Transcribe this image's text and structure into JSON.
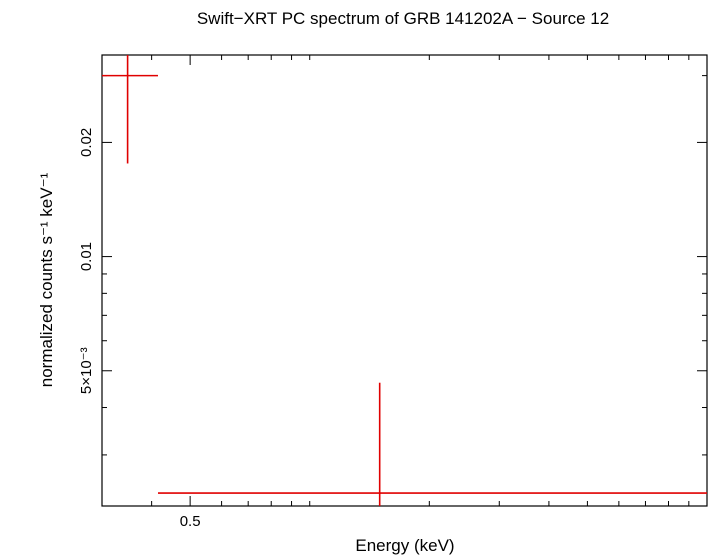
{
  "chart_data": {
    "type": "scatter",
    "title": "Swift−XRT PC spectrum of GRB 141202A − Source 12",
    "xlabel": "Energy (keV)",
    "ylabel": "normalized counts s⁻¹ keV⁻¹",
    "x_scale": "log",
    "y_scale": "log",
    "xlim": [
      0.3,
      10
    ],
    "ylim": [
      0.0022,
      0.034
    ],
    "x_ticks": [
      {
        "value": 0.5,
        "label": "0.5"
      }
    ],
    "y_ticks": [
      {
        "value": 0.005,
        "label": "5×10⁻³"
      },
      {
        "value": 0.01,
        "label": "0.01"
      },
      {
        "value": 0.02,
        "label": "0.02"
      }
    ],
    "series": [
      {
        "color": "#e00000",
        "points": [
          {
            "x": 0.348,
            "x_low": 0.3,
            "x_high": 0.415,
            "y": 0.03,
            "y_low": 0.0176,
            "y_high": 0.034
          },
          {
            "x": 1.5,
            "x_low": 0.415,
            "x_high": 10.0,
            "y": 0.00238,
            "y_low": 0.0022,
            "y_high": 0.00465
          }
        ]
      }
    ]
  }
}
